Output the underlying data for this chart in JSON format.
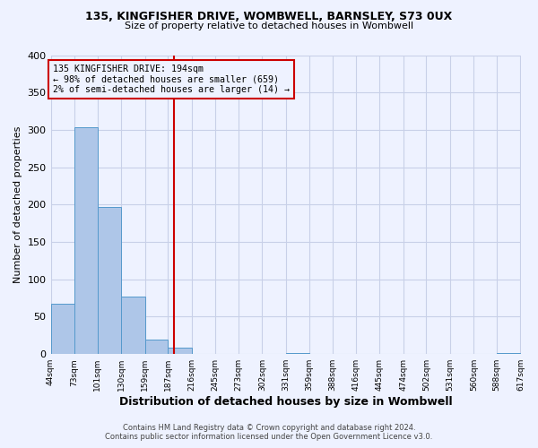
{
  "title": "135, KINGFISHER DRIVE, WOMBWELL, BARNSLEY, S73 0UX",
  "subtitle": "Size of property relative to detached houses in Wombwell",
  "xlabel": "Distribution of detached houses by size in Wombwell",
  "ylabel": "Number of detached properties",
  "bin_edges": [
    44,
    73,
    101,
    130,
    159,
    187,
    216,
    245,
    273,
    302,
    331,
    359,
    388,
    416,
    445,
    474,
    502,
    531,
    560,
    588,
    617
  ],
  "bin_counts": [
    67,
    303,
    197,
    77,
    20,
    9,
    0,
    0,
    0,
    0,
    2,
    0,
    0,
    0,
    0,
    0,
    0,
    0,
    0,
    2
  ],
  "bar_color": "#aec6e8",
  "bar_edge_color": "#5599cc",
  "vline_x": 194,
  "vline_color": "#cc0000",
  "annotation_title": "135 KINGFISHER DRIVE: 194sqm",
  "annotation_line1": "← 98% of detached houses are smaller (659)",
  "annotation_line2": "2% of semi-detached houses are larger (14) →",
  "annotation_box_color": "#cc0000",
  "ylim": [
    0,
    400
  ],
  "yticks": [
    0,
    50,
    100,
    150,
    200,
    250,
    300,
    350,
    400
  ],
  "tick_labels": [
    "44sqm",
    "73sqm",
    "101sqm",
    "130sqm",
    "159sqm",
    "187sqm",
    "216sqm",
    "245sqm",
    "273sqm",
    "302sqm",
    "331sqm",
    "359sqm",
    "388sqm",
    "416sqm",
    "445sqm",
    "474sqm",
    "502sqm",
    "531sqm",
    "560sqm",
    "588sqm",
    "617sqm"
  ],
  "footer_line1": "Contains HM Land Registry data © Crown copyright and database right 2024.",
  "footer_line2": "Contains public sector information licensed under the Open Government Licence v3.0.",
  "bg_color": "#eef2ff",
  "grid_color": "#c8d0e8"
}
